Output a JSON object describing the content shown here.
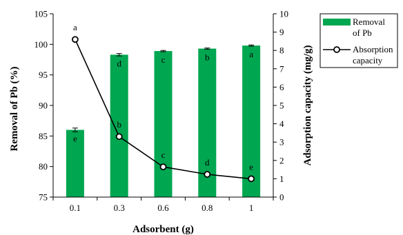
{
  "chart_data": {
    "type": "bar",
    "categories": [
      "0.1",
      "0.3",
      "0.6",
      "0.8",
      "1"
    ],
    "xlabel": "Adsorbent (g)",
    "y_left": {
      "label": "Removal of Pb (%)",
      "range": [
        75,
        105
      ],
      "ticks": [
        75,
        80,
        85,
        90,
        95,
        100,
        105
      ]
    },
    "y_right": {
      "label": "Adsorption capacity (mg/g)",
      "range": [
        0,
        10
      ],
      "ticks": [
        0,
        1,
        2,
        3,
        4,
        5,
        6,
        7,
        8,
        9,
        10
      ]
    },
    "series": [
      {
        "name": "Removal of Pb",
        "type": "bar",
        "axis": "left",
        "color": "#00a650",
        "values": [
          86.0,
          98.3,
          98.9,
          99.3,
          99.8
        ],
        "errors": [
          0.3,
          0.2,
          0.1,
          0.1,
          0.1
        ],
        "letters": [
          "e",
          "d",
          "c",
          "b",
          "a"
        ]
      },
      {
        "name": "Absorption capacity",
        "type": "line",
        "axis": "right",
        "color": "#000000",
        "values": [
          8.6,
          3.3,
          1.65,
          1.24,
          1.0
        ],
        "letters": [
          "a",
          "b",
          "c",
          "d",
          "e"
        ]
      }
    ],
    "legend": {
      "position": "top-right",
      "entries": [
        {
          "lines": [
            "Removal",
            "of Pb"
          ]
        },
        {
          "lines": [
            "Absorption",
            "capacity"
          ]
        }
      ]
    },
    "grid": false
  }
}
